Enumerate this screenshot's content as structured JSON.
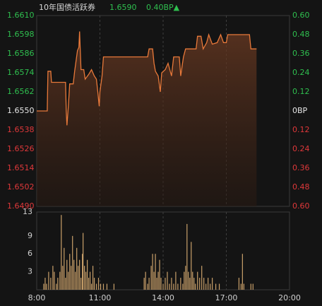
{
  "chart_data": [
    {
      "type": "line",
      "title": "10年国债活跃券",
      "last_price": "1.6590",
      "change": "0.40BP▲",
      "x": [
        480,
        510,
        512,
        520,
        522,
        562,
        564,
        566,
        570,
        574,
        584,
        588,
        596,
        600,
        602,
        606,
        614,
        618,
        628,
        636,
        644,
        650,
        654,
        658,
        660,
        666,
        670,
        796,
        800,
        810,
        814,
        818,
        826,
        832,
        836,
        846,
        854,
        864,
        870,
        886,
        890,
        898,
        904,
        934,
        938,
        948,
        954,
        964,
        970,
        980,
        994,
        1004,
        1012,
        1020,
        1024,
        1056,
        1086,
        1090,
        1106
      ],
      "values": [
        1.655,
        1.655,
        1.6575,
        1.6575,
        1.6568,
        1.6568,
        1.655,
        1.6541,
        1.6553,
        1.6567,
        1.6567,
        1.6575,
        1.6588,
        1.659,
        1.66,
        1.6576,
        1.6576,
        1.657,
        1.6573,
        1.6576,
        1.6572,
        1.657,
        1.6562,
        1.6553,
        1.6562,
        1.6572,
        1.6584,
        1.6584,
        1.6589,
        1.6589,
        1.658,
        1.6575,
        1.6572,
        1.6562,
        1.6574,
        1.6576,
        1.658,
        1.6572,
        1.6584,
        1.6584,
        1.6572,
        1.6584,
        1.6589,
        1.6589,
        1.6597,
        1.6597,
        1.6589,
        1.6593,
        1.6598,
        1.6592,
        1.6593,
        1.6598,
        1.6593,
        1.6593,
        1.6598,
        1.6598,
        1.6598,
        1.6589,
        1.6589
      ],
      "color": "#e8793a",
      "xlim": [
        480,
        1200
      ],
      "ylim": [
        1.649,
        1.661
      ],
      "yticks": [
        {
          "value": 1.661,
          "label": "1.6610"
        },
        1.6598,
        1.6586,
        1.6574,
        1.6562,
        {
          "value": 1.655,
          "label": "1.6550"
        },
        1.6538,
        1.6526,
        1.6514,
        1.6502,
        {
          "value": 1.649,
          "label": "1.6490"
        }
      ],
      "y2lim": [
        -0.6,
        0.6
      ],
      "y2ticks": [
        {
          "value": 0.6,
          "label": "0.60"
        },
        0.48,
        0.36,
        0.24,
        0.12,
        {
          "value": 0,
          "label": "0BP"
        },
        {
          "value": -0.12,
          "label": "0.12"
        },
        {
          "value": -0.24,
          "label": "0.24"
        },
        {
          "value": -0.36,
          "label": "0.36"
        },
        {
          "value": -0.48,
          "label": "0.48"
        },
        {
          "value": -0.6,
          "label": "0.60"
        }
      ],
      "up_color": "#2fbf4f",
      "down_color": "#e0383a",
      "flat_color": "#e6e6e6"
    },
    {
      "type": "bar",
      "x": [
        500,
        504,
        508,
        514,
        520,
        526,
        530,
        536,
        540,
        546,
        550,
        554,
        558,
        562,
        566,
        570,
        574,
        578,
        582,
        586,
        590,
        594,
        598,
        602,
        606,
        610,
        612,
        616,
        620,
        624,
        628,
        632,
        636,
        640,
        644,
        650,
        656,
        662,
        670,
        680,
        700,
        786,
        790,
        796,
        800,
        806,
        810,
        814,
        818,
        822,
        826,
        830,
        834,
        840,
        846,
        852,
        858,
        864,
        870,
        876,
        882,
        890,
        896,
        900,
        904,
        908,
        912,
        916,
        920,
        924,
        928,
        932,
        938,
        944,
        950,
        956,
        962,
        968,
        974,
        980,
        990,
        1000,
        1056,
        1062,
        1066,
        1070,
        1090,
        1096
      ],
      "values": [
        1,
        2,
        1,
        3,
        2,
        4,
        3,
        1,
        2,
        3,
        12.5,
        4,
        7,
        2,
        5,
        3,
        6,
        4,
        9,
        5,
        3,
        7,
        4,
        5,
        2,
        6,
        9.5,
        4,
        3,
        5,
        2,
        3,
        1,
        4,
        2,
        1,
        2,
        1,
        1,
        1,
        1,
        2,
        3,
        1,
        2,
        4,
        6,
        3,
        6,
        2,
        3,
        5,
        2,
        1,
        2,
        3,
        1,
        2,
        1,
        3,
        1,
        2,
        1,
        3,
        4,
        11,
        3,
        2,
        8,
        3,
        2,
        1,
        3,
        2,
        4,
        2,
        1,
        2,
        1,
        2,
        1,
        1,
        2,
        1,
        6,
        1,
        1,
        1
      ],
      "color": "#c9a06a",
      "xlim": [
        480,
        1200
      ],
      "xticks": [
        {
          "value": 480,
          "label": "8:00"
        },
        {
          "value": 660,
          "label": "11:00"
        },
        {
          "value": 840,
          "label": "14:00"
        },
        {
          "value": 1020,
          "label": "17:00"
        },
        {
          "value": 1200,
          "label": "20:00"
        }
      ],
      "ylim": [
        0,
        13
      ],
      "yticks": [
        13,
        9,
        6,
        3
      ]
    }
  ]
}
